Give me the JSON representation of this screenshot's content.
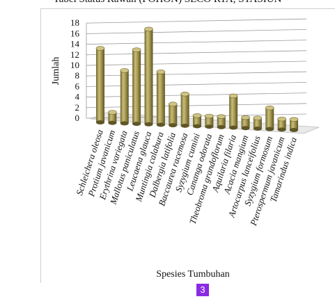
{
  "top_caption": "Tabel Status Rawan (POHON) SECO RTA, STASIUN",
  "page_badge": "3",
  "chart_data": {
    "type": "bar",
    "xlabel": "Spesies Tumbuhan",
    "ylabel": "Jumlah",
    "ylim": [
      0,
      18
    ],
    "yticks": [
      0,
      2,
      4,
      6,
      8,
      10,
      12,
      14,
      16,
      18
    ],
    "grid": true,
    "categories": [
      "Schleichera oleosa",
      "Protium javanicum",
      "Erythrina variegata",
      "Mallotus paniculatus",
      "Leucaena glauca",
      "Muntingia calabura",
      "Dalbergia latifolia",
      "Baccaurea racemosa",
      "Syzygium cumini",
      "Cananga odorata",
      "Theobroma grandoflorum",
      "Aquilaria filaria",
      "Acacia mangium",
      "Artocarpus lanceifolius",
      "Syzygium formosum",
      "Pterospermum javanicum",
      "Tamarindus indica"
    ],
    "values": [
      14,
      2,
      10,
      14,
      18,
      10,
      4,
      6,
      2,
      2,
      2,
      6,
      2,
      2,
      4,
      2,
      2
    ],
    "bar_color": "#9b8f4a"
  }
}
